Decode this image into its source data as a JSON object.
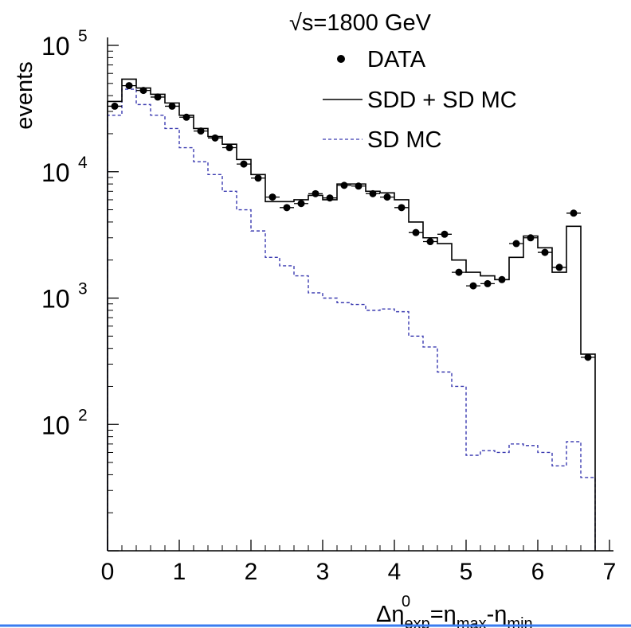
{
  "chart_data": {
    "type": "line",
    "title": "√s=1800 GeV",
    "ylabel": "events",
    "xlabel": {
      "delta": "Δη",
      "sub1": "exp",
      "sup1": "0",
      "eq": "=η",
      "sub2": "max",
      "dash": "-η",
      "sub3": "min"
    },
    "xlim": [
      0,
      7
    ],
    "ylim": [
      10,
      100000
    ],
    "y_scale": "log",
    "x_ticks": [
      "0",
      "1",
      "2",
      "3",
      "4",
      "5",
      "6",
      "7"
    ],
    "y_ticks": [
      {
        "value": 100,
        "base": "10",
        "exp": "2"
      },
      {
        "value": 1000,
        "base": "10",
        "exp": "3"
      },
      {
        "value": 10000,
        "base": "10",
        "exp": "4"
      },
      {
        "value": 100000,
        "base": "10",
        "exp": "5"
      }
    ],
    "legend_position": "top-right",
    "colors": {
      "data": "#000000",
      "sdd_sd": "#000000",
      "sd": "#3a3ab0",
      "bottom_line": "#3a7cf0"
    },
    "bin_edges": [
      0,
      0.2,
      0.4,
      0.6,
      0.8,
      1.0,
      1.2,
      1.4,
      1.6,
      1.8,
      2.0,
      2.2,
      2.4,
      2.6,
      2.8,
      3.0,
      3.2,
      3.4,
      3.6,
      3.8,
      4.0,
      4.2,
      4.4,
      4.6,
      4.8,
      5.0,
      5.2,
      5.4,
      5.6,
      5.8,
      6.0,
      6.2,
      6.4,
      6.6,
      6.8
    ],
    "series": [
      {
        "name": "DATA",
        "style": "points",
        "x": [
          0.1,
          0.3,
          0.5,
          0.7,
          0.9,
          1.1,
          1.3,
          1.5,
          1.7,
          1.9,
          2.1,
          2.3,
          2.5,
          2.7,
          2.9,
          3.1,
          3.3,
          3.5,
          3.7,
          3.9,
          4.1,
          4.3,
          4.5,
          4.7,
          4.9,
          5.1,
          5.3,
          5.5,
          5.7,
          5.9,
          6.1,
          6.3,
          6.5,
          6.7
        ],
        "y": [
          33000,
          48000,
          44000,
          39000,
          33000,
          27000,
          21000,
          18500,
          15500,
          11500,
          8900,
          6300,
          5200,
          5600,
          6700,
          6200,
          7800,
          7700,
          6700,
          6300,
          5200,
          3300,
          2800,
          3200,
          1600,
          1250,
          1300,
          1400,
          2700,
          3000,
          2300,
          1750,
          4700,
          340
        ]
      },
      {
        "name": "SDD + SD MC",
        "style": "solid-step",
        "y": [
          36000,
          54000,
          46000,
          41000,
          35000,
          28000,
          22000,
          19000,
          16500,
          12500,
          9500,
          5800,
          5800,
          6000,
          6500,
          6000,
          8000,
          8000,
          7000,
          6800,
          6000,
          4000,
          3000,
          2700,
          2000,
          1600,
          1500,
          1400,
          2100,
          3100,
          2500,
          1600,
          3700,
          360
        ]
      },
      {
        "name": "SD MC",
        "style": "dashed-step",
        "y": [
          28000,
          45000,
          34000,
          28000,
          22000,
          15500,
          12000,
          9500,
          7000,
          5000,
          3400,
          2100,
          1800,
          1500,
          1100,
          1000,
          920,
          890,
          800,
          820,
          780,
          500,
          410,
          260,
          200,
          57,
          62,
          60,
          70,
          68,
          60,
          47,
          73,
          38
        ]
      }
    ]
  }
}
